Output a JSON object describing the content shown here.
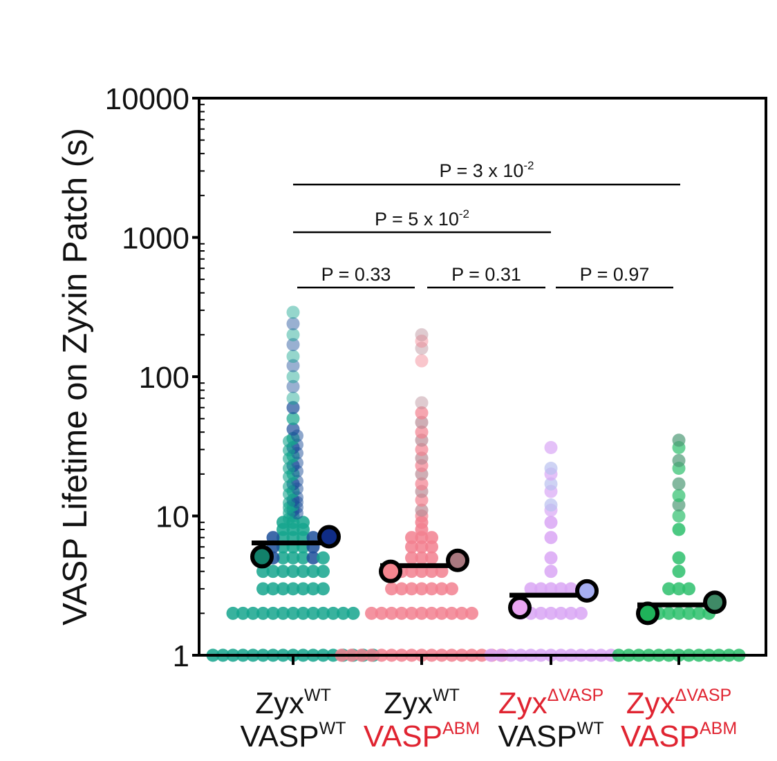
{
  "chart_data": {
    "type": "scatter",
    "ylabel": "VASP Lifetime on Zyxin Patch (s)",
    "xlabel": "",
    "title": "",
    "yscale": "log",
    "ylim": [
      1,
      10000
    ],
    "yticks": [
      {
        "value": 1,
        "label": "1"
      },
      {
        "value": 10,
        "label": "10"
      },
      {
        "value": 100,
        "label": "100"
      },
      {
        "value": 1000,
        "label": "1000"
      },
      {
        "value": 10000,
        "label": "10000"
      }
    ],
    "groups": [
      {
        "line1": {
          "base": "Zyx",
          "sup": "WT",
          "color": "#111111"
        },
        "line2": {
          "base": "VASP",
          "sup": "WT",
          "color": "#111111"
        },
        "dot_color": "#15a58d",
        "dot_color_alt": "#1d4f9a",
        "mean": 6.4,
        "replicates": [
          {
            "value": 5.1,
            "color": "#12806a"
          },
          {
            "value": 7.1,
            "color": "#0f2c86"
          }
        ],
        "strips": [
          {
            "value": 1,
            "count": 9
          },
          {
            "value": 2,
            "count": 7
          },
          {
            "value": 3,
            "count": 4
          },
          {
            "value": 4,
            "count": 4
          },
          {
            "value": 5,
            "count": 4
          },
          {
            "value": 6,
            "count": 3
          },
          {
            "value": 7,
            "count": 3
          },
          {
            "value": 8,
            "count": 2
          },
          {
            "value": 9,
            "count": 2
          }
        ],
        "tail": [
          10,
          11,
          12,
          13,
          15,
          17,
          20,
          23,
          27,
          31,
          36,
          42,
          50,
          60,
          70,
          85,
          100,
          120,
          140,
          170,
          200,
          240,
          290
        ]
      },
      {
        "line1": {
          "base": "Zyx",
          "sup": "WT",
          "color": "#111111"
        },
        "line2": {
          "base": "VASP",
          "sup": "ABM",
          "color": "#e02431"
        },
        "dot_color": "#f2808f",
        "dot_color_alt": "#b98b96",
        "mean": 4.4,
        "replicates": [
          {
            "value": 4.0,
            "color": "#f4858f"
          },
          {
            "value": 4.8,
            "color": "#a9787f"
          }
        ],
        "strips": [
          {
            "value": 1,
            "count": 9
          },
          {
            "value": 2,
            "count": 6
          },
          {
            "value": 3,
            "count": 4
          },
          {
            "value": 4,
            "count": 3
          },
          {
            "value": 5,
            "count": 2
          },
          {
            "value": 6,
            "count": 2
          },
          {
            "value": 7,
            "count": 2
          },
          {
            "value": 8,
            "count": 1
          },
          {
            "value": 9,
            "count": 1
          }
        ],
        "tail": [
          10,
          11,
          13,
          15,
          17,
          20,
          23,
          26,
          30,
          35,
          40,
          47,
          55,
          65,
          130,
          160,
          180,
          200
        ]
      },
      {
        "line1": {
          "base": "Zyx",
          "sup": "ΔVASP",
          "color": "#e02431"
        },
        "line2": {
          "base": "VASP",
          "sup": "WT",
          "color": "#111111"
        },
        "dot_color": "#d9a6f5",
        "dot_color_alt": "#b9c1f0",
        "mean": 2.7,
        "replicates": [
          {
            "value": 2.2,
            "color": "#eba6f3"
          },
          {
            "value": 2.9,
            "color": "#a6aef2"
          }
        ],
        "strips": [
          {
            "value": 1,
            "count": 7
          },
          {
            "value": 2,
            "count": 4
          },
          {
            "value": 3,
            "count": 3
          },
          {
            "value": 4,
            "count": 1
          },
          {
            "value": 5,
            "count": 1
          },
          {
            "value": 7,
            "count": 1
          },
          {
            "value": 9,
            "count": 1
          }
        ],
        "tail": [
          11,
          12,
          15,
          17,
          20,
          22,
          31
        ]
      },
      {
        "line1": {
          "base": "Zyx",
          "sup": "ΔVASP",
          "color": "#e02431"
        },
        "line2": {
          "base": "VASP",
          "sup": "ABM",
          "color": "#e02431"
        },
        "dot_color": "#2dbf6c",
        "dot_color_alt": "#4e9a76",
        "mean": 2.3,
        "replicates": [
          {
            "value": 2.0,
            "color": "#1fb35a"
          },
          {
            "value": 2.4,
            "color": "#3f8a66"
          }
        ],
        "strips": [
          {
            "value": 1,
            "count": 7
          },
          {
            "value": 2,
            "count": 4
          },
          {
            "value": 3,
            "count": 2
          },
          {
            "value": 4,
            "count": 1
          },
          {
            "value": 5,
            "count": 1
          },
          {
            "value": 8,
            "count": 1
          }
        ],
        "tail": [
          10,
          12,
          14,
          17,
          22,
          25,
          31,
          35
        ]
      }
    ],
    "comparisons": [
      {
        "from": 0,
        "to": 1,
        "label": "P = 0.33",
        "base": "",
        "exp": ""
      },
      {
        "from": 1,
        "to": 2,
        "label": "P = 0.31",
        "base": "",
        "exp": ""
      },
      {
        "from": 2,
        "to": 3,
        "label": "P = 0.97",
        "base": "",
        "exp": ""
      },
      {
        "from": 0,
        "to": 2,
        "label": "",
        "base": "P = 5 x 10",
        "exp": "-2"
      },
      {
        "from": 0,
        "to": 3,
        "label": "",
        "base": "P = 3 x 10",
        "exp": "-2"
      }
    ]
  }
}
